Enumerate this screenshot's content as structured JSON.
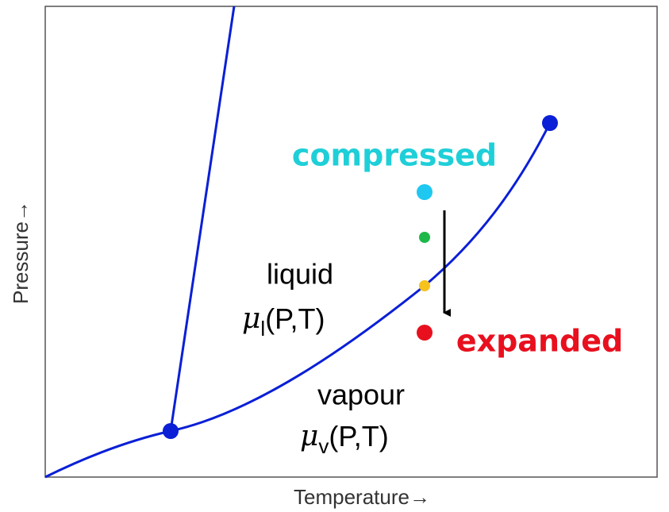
{
  "axes": {
    "x_label": "Temperature→",
    "y_label": "Pressure→"
  },
  "regions": {
    "liquid": {
      "name": "liquid",
      "potential": {
        "symbol": "μ",
        "subscript": "l",
        "args": "(P,T)"
      }
    },
    "vapour": {
      "name": "vapour",
      "potential": {
        "symbol": "μ",
        "subscript": "v",
        "args": "(P,T)"
      }
    }
  },
  "states": {
    "compressed": "compressed",
    "expanded": "expanded"
  }
}
